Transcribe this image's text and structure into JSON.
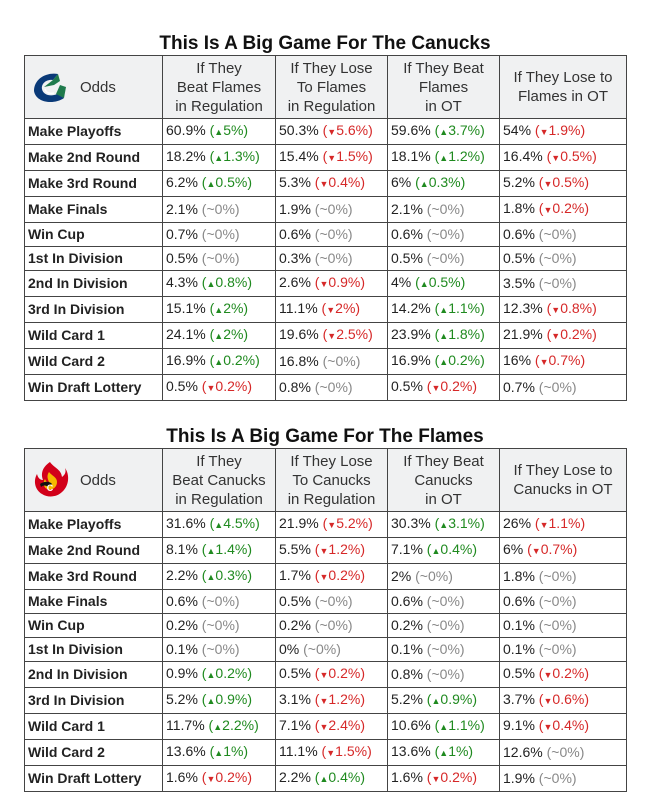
{
  "tables": [
    {
      "title": "This Is A Big Game For The Canucks",
      "logo": "canucks-logo",
      "odds_label": "Odds",
      "headers": [
        [
          "If They",
          "Beat Flames",
          "in Regulation"
        ],
        [
          "If They Lose",
          "To Flames",
          "in Regulation"
        ],
        [
          "If They Beat",
          "Flames",
          "in OT"
        ],
        [
          "If They Lose to",
          "Flames in OT"
        ]
      ],
      "rows": [
        {
          "label": "Make Playoffs",
          "cells": [
            {
              "v": "60.9%",
              "d": "+5%",
              "t": "up"
            },
            {
              "v": "50.3%",
              "d": "-5.6%",
              "t": "dn"
            },
            {
              "v": "59.6%",
              "d": "+3.7%",
              "t": "up"
            },
            {
              "v": "54%",
              "d": "-1.9%",
              "t": "dn"
            }
          ]
        },
        {
          "label": "Make 2nd Round",
          "cells": [
            {
              "v": "18.2%",
              "d": "+1.3%",
              "t": "up"
            },
            {
              "v": "15.4%",
              "d": "-1.5%",
              "t": "dn"
            },
            {
              "v": "18.1%",
              "d": "+1.2%",
              "t": "up"
            },
            {
              "v": "16.4%",
              "d": "-0.5%",
              "t": "dn"
            }
          ]
        },
        {
          "label": "Make 3rd Round",
          "cells": [
            {
              "v": "6.2%",
              "d": "+0.5%",
              "t": "up"
            },
            {
              "v": "5.3%",
              "d": "-0.4%",
              "t": "dn"
            },
            {
              "v": "6%",
              "d": "+0.3%",
              "t": "up"
            },
            {
              "v": "5.2%",
              "d": "-0.5%",
              "t": "dn"
            }
          ]
        },
        {
          "label": "Make Finals",
          "cells": [
            {
              "v": "2.1%",
              "d": "~0%",
              "t": "nc"
            },
            {
              "v": "1.9%",
              "d": "~0%",
              "t": "nc"
            },
            {
              "v": "2.1%",
              "d": "~0%",
              "t": "nc"
            },
            {
              "v": "1.8%",
              "d": "-0.2%",
              "t": "dn"
            }
          ]
        },
        {
          "label": "Win Cup",
          "cells": [
            {
              "v": "0.7%",
              "d": "~0%",
              "t": "nc"
            },
            {
              "v": "0.6%",
              "d": "~0%",
              "t": "nc"
            },
            {
              "v": "0.6%",
              "d": "~0%",
              "t": "nc"
            },
            {
              "v": "0.6%",
              "d": "~0%",
              "t": "nc"
            }
          ]
        },
        {
          "label": "1st In Division",
          "cells": [
            {
              "v": "0.5%",
              "d": "~0%",
              "t": "nc"
            },
            {
              "v": "0.3%",
              "d": "~0%",
              "t": "nc"
            },
            {
              "v": "0.5%",
              "d": "~0%",
              "t": "nc"
            },
            {
              "v": "0.5%",
              "d": "~0%",
              "t": "nc"
            }
          ]
        },
        {
          "label": "2nd In Division",
          "cells": [
            {
              "v": "4.3%",
              "d": "+0.8%",
              "t": "up"
            },
            {
              "v": "2.6%",
              "d": "-0.9%",
              "t": "dn"
            },
            {
              "v": "4%",
              "d": "+0.5%",
              "t": "up"
            },
            {
              "v": "3.5%",
              "d": "~0%",
              "t": "nc"
            }
          ]
        },
        {
          "label": "3rd In Division",
          "cells": [
            {
              "v": "15.1%",
              "d": "+2%",
              "t": "up"
            },
            {
              "v": "11.1%",
              "d": "-2%",
              "t": "dn"
            },
            {
              "v": "14.2%",
              "d": "+1.1%",
              "t": "up"
            },
            {
              "v": "12.3%",
              "d": "-0.8%",
              "t": "dn"
            }
          ]
        },
        {
          "label": "Wild Card 1",
          "cells": [
            {
              "v": "24.1%",
              "d": "+2%",
              "t": "up"
            },
            {
              "v": "19.6%",
              "d": "-2.5%",
              "t": "dn"
            },
            {
              "v": "23.9%",
              "d": "+1.8%",
              "t": "up"
            },
            {
              "v": "21.9%",
              "d": "-0.2%",
              "t": "dn"
            }
          ]
        },
        {
          "label": "Wild Card 2",
          "cells": [
            {
              "v": "16.9%",
              "d": "+0.2%",
              "t": "up"
            },
            {
              "v": "16.8%",
              "d": "~0%",
              "t": "nc"
            },
            {
              "v": "16.9%",
              "d": "+0.2%",
              "t": "up"
            },
            {
              "v": "16%",
              "d": "-0.7%",
              "t": "dn"
            }
          ]
        },
        {
          "label": "Win Draft Lottery",
          "cells": [
            {
              "v": "0.5%",
              "d": "-0.2%",
              "t": "dn"
            },
            {
              "v": "0.8%",
              "d": "~0%",
              "t": "nc"
            },
            {
              "v": "0.5%",
              "d": "-0.2%",
              "t": "dn"
            },
            {
              "v": "0.7%",
              "d": "~0%",
              "t": "nc"
            }
          ]
        }
      ]
    },
    {
      "title": "This Is A Big Game For The Flames",
      "logo": "flames-logo",
      "odds_label": "Odds",
      "headers": [
        [
          "If They",
          "Beat Canucks",
          "in Regulation"
        ],
        [
          "If They Lose",
          "To Canucks",
          "in Regulation"
        ],
        [
          "If They Beat",
          "Canucks",
          "in OT"
        ],
        [
          "If They Lose to",
          "Canucks in OT"
        ]
      ],
      "rows": [
        {
          "label": "Make Playoffs",
          "cells": [
            {
              "v": "31.6%",
              "d": "+4.5%",
              "t": "up"
            },
            {
              "v": "21.9%",
              "d": "-5.2%",
              "t": "dn"
            },
            {
              "v": "30.3%",
              "d": "+3.1%",
              "t": "up"
            },
            {
              "v": "26%",
              "d": "-1.1%",
              "t": "dn"
            }
          ]
        },
        {
          "label": "Make 2nd Round",
          "cells": [
            {
              "v": "8.1%",
              "d": "+1.4%",
              "t": "up"
            },
            {
              "v": "5.5%",
              "d": "-1.2%",
              "t": "dn"
            },
            {
              "v": "7.1%",
              "d": "+0.4%",
              "t": "up"
            },
            {
              "v": "6%",
              "d": "-0.7%",
              "t": "dn"
            }
          ]
        },
        {
          "label": "Make 3rd Round",
          "cells": [
            {
              "v": "2.2%",
              "d": "+0.3%",
              "t": "up"
            },
            {
              "v": "1.7%",
              "d": "-0.2%",
              "t": "dn"
            },
            {
              "v": "2%",
              "d": "~0%",
              "t": "nc"
            },
            {
              "v": "1.8%",
              "d": "~0%",
              "t": "nc"
            }
          ]
        },
        {
          "label": "Make Finals",
          "cells": [
            {
              "v": "0.6%",
              "d": "~0%",
              "t": "nc"
            },
            {
              "v": "0.5%",
              "d": "~0%",
              "t": "nc"
            },
            {
              "v": "0.6%",
              "d": "~0%",
              "t": "nc"
            },
            {
              "v": "0.6%",
              "d": "~0%",
              "t": "nc"
            }
          ]
        },
        {
          "label": "Win Cup",
          "cells": [
            {
              "v": "0.2%",
              "d": "~0%",
              "t": "nc"
            },
            {
              "v": "0.2%",
              "d": "~0%",
              "t": "nc"
            },
            {
              "v": "0.2%",
              "d": "~0%",
              "t": "nc"
            },
            {
              "v": "0.1%",
              "d": "~0%",
              "t": "nc"
            }
          ]
        },
        {
          "label": "1st In Division",
          "cells": [
            {
              "v": "0.1%",
              "d": "~0%",
              "t": "nc"
            },
            {
              "v": "0%",
              "d": "~0%",
              "t": "nc"
            },
            {
              "v": "0.1%",
              "d": "~0%",
              "t": "nc"
            },
            {
              "v": "0.1%",
              "d": "~0%",
              "t": "nc"
            }
          ]
        },
        {
          "label": "2nd In Division",
          "cells": [
            {
              "v": "0.9%",
              "d": "+0.2%",
              "t": "up"
            },
            {
              "v": "0.5%",
              "d": "-0.2%",
              "t": "dn"
            },
            {
              "v": "0.8%",
              "d": "~0%",
              "t": "nc"
            },
            {
              "v": "0.5%",
              "d": "-0.2%",
              "t": "dn"
            }
          ]
        },
        {
          "label": "3rd In Division",
          "cells": [
            {
              "v": "5.2%",
              "d": "+0.9%",
              "t": "up"
            },
            {
              "v": "3.1%",
              "d": "-1.2%",
              "t": "dn"
            },
            {
              "v": "5.2%",
              "d": "+0.9%",
              "t": "up"
            },
            {
              "v": "3.7%",
              "d": "-0.6%",
              "t": "dn"
            }
          ]
        },
        {
          "label": "Wild Card 1",
          "cells": [
            {
              "v": "11.7%",
              "d": "+2.2%",
              "t": "up"
            },
            {
              "v": "7.1%",
              "d": "-2.4%",
              "t": "dn"
            },
            {
              "v": "10.6%",
              "d": "+1.1%",
              "t": "up"
            },
            {
              "v": "9.1%",
              "d": "-0.4%",
              "t": "dn"
            }
          ]
        },
        {
          "label": "Wild Card 2",
          "cells": [
            {
              "v": "13.6%",
              "d": "+1%",
              "t": "up"
            },
            {
              "v": "11.1%",
              "d": "-1.5%",
              "t": "dn"
            },
            {
              "v": "13.6%",
              "d": "+1%",
              "t": "up"
            },
            {
              "v": "12.6%",
              "d": "~0%",
              "t": "nc"
            }
          ]
        },
        {
          "label": "Win Draft Lottery",
          "cells": [
            {
              "v": "1.6%",
              "d": "-0.2%",
              "t": "dn"
            },
            {
              "v": "2.2%",
              "d": "+0.4%",
              "t": "up"
            },
            {
              "v": "1.6%",
              "d": "-0.2%",
              "t": "dn"
            },
            {
              "v": "1.9%",
              "d": "~0%",
              "t": "nc"
            }
          ]
        }
      ]
    }
  ]
}
